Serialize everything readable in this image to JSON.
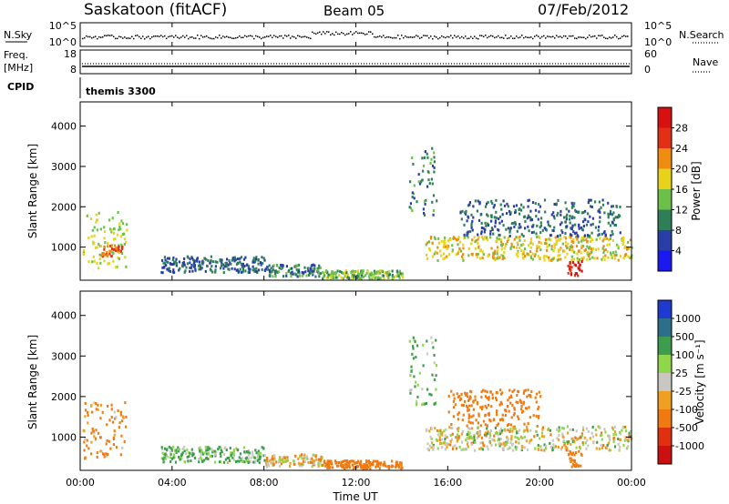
{
  "header": {
    "station": "Saskatoon (fitACF)",
    "beam": "Beam 05",
    "date": "07/Feb/2012"
  },
  "noise_panel": {
    "left_label": "N.Sky",
    "left_ticks": [
      "10^5",
      "10^0"
    ],
    "right_ticks": [
      "10^5",
      "10^0"
    ],
    "right_label": "N.Search"
  },
  "freq_panel": {
    "left_label_1": "Freq.",
    "left_label_2": "[MHz]",
    "left_ticks": [
      "18",
      "8"
    ],
    "right_ticks": [
      "60",
      "0"
    ],
    "right_label": "Nave"
  },
  "cpid_panel": {
    "label": "CPID",
    "value": "themis 3300"
  },
  "x_axis": {
    "title": "Time UT",
    "ticks": [
      "00:00",
      "04:00",
      "08:00",
      "12:00",
      "16:00",
      "20:00",
      "00:00"
    ]
  },
  "power_panel": {
    "y_title": "Slant Range [km]",
    "y_ticks": [
      "1000",
      "2000",
      "3000",
      "4000"
    ],
    "cbar_title": "Power [dB]",
    "cbar_ticks": [
      "4",
      "8",
      "12",
      "16",
      "20",
      "24",
      "28"
    ],
    "cbar_colors": [
      "#1a1af0",
      "#2a3ea8",
      "#2e7f57",
      "#6cc04a",
      "#e8d21c",
      "#f08c10",
      "#e23016",
      "#d81010"
    ]
  },
  "velocity_panel": {
    "y_title": "Slant Range [km]",
    "y_ticks": [
      "1000",
      "2000",
      "3000",
      "4000"
    ],
    "cbar_title": "Velocity [m s⁻¹]",
    "cbar_ticks": [
      "1000",
      "500",
      "100",
      "25",
      "-25",
      "-100",
      "-500",
      "-1000"
    ],
    "cbar_colors": [
      "#1e3ad0",
      "#2b6f8a",
      "#3d9c4e",
      "#8fd64a",
      "#c8c8c0",
      "#f0a020",
      "#f07a10",
      "#e03010",
      "#cc1010"
    ]
  },
  "chart_data": [
    {
      "type": "heatmap",
      "title": "Power [dB]",
      "xlabel": "Time UT",
      "ylabel": "Slant Range [km]",
      "xlim": [
        0,
        24
      ],
      "ylim": [
        180,
        4600
      ],
      "clim": [
        0,
        30
      ],
      "regions": [
        {
          "t0": 0.1,
          "t1": 2.0,
          "r0": 500,
          "r1": 1900,
          "level": 16
        },
        {
          "t0": 0.9,
          "t1": 1.8,
          "r0": 800,
          "r1": 1100,
          "level": 24
        },
        {
          "t0": 3.5,
          "t1": 8.0,
          "r0": 400,
          "r1": 800,
          "level": 8
        },
        {
          "t0": 8.0,
          "t1": 10.5,
          "r0": 300,
          "r1": 600,
          "level": 10
        },
        {
          "t0": 10.5,
          "t1": 14.0,
          "r0": 250,
          "r1": 450,
          "level": 14
        },
        {
          "t0": 14.3,
          "t1": 15.5,
          "r0": 1800,
          "r1": 3500,
          "level": 10
        },
        {
          "t0": 15.0,
          "t1": 24.0,
          "r0": 700,
          "r1": 1300,
          "level": 18
        },
        {
          "t0": 16.5,
          "t1": 23.5,
          "r0": 1300,
          "r1": 2200,
          "level": 8
        },
        {
          "t0": 21.2,
          "t1": 21.8,
          "r0": 300,
          "r1": 700,
          "level": 28
        }
      ]
    },
    {
      "type": "heatmap",
      "title": "Velocity [m s⁻¹]",
      "xlabel": "Time UT",
      "ylabel": "Slant Range [km]",
      "xlim": [
        0,
        24
      ],
      "ylim": [
        180,
        4600
      ],
      "clim": [
        -1000,
        1000
      ],
      "regions": [
        {
          "t0": 0.1,
          "t1": 2.0,
          "r0": 500,
          "r1": 1900,
          "velocity": -80
        },
        {
          "t0": 3.5,
          "t1": 8.0,
          "r0": 400,
          "r1": 800,
          "velocity": 60
        },
        {
          "t0": 8.0,
          "t1": 10.5,
          "r0": 300,
          "r1": 600,
          "velocity": -20
        },
        {
          "t0": 10.5,
          "t1": 14.0,
          "r0": 250,
          "r1": 450,
          "velocity": -150
        },
        {
          "t0": 14.3,
          "t1": 15.5,
          "r0": 1800,
          "r1": 3500,
          "velocity": 80
        },
        {
          "t0": 15.0,
          "t1": 24.0,
          "r0": 700,
          "r1": 1300,
          "velocity": 0
        },
        {
          "t0": 16.0,
          "t1": 20.0,
          "r0": 1300,
          "r1": 2200,
          "velocity": -200
        },
        {
          "t0": 21.2,
          "t1": 21.8,
          "r0": 300,
          "r1": 700,
          "velocity": -150
        }
      ]
    }
  ]
}
